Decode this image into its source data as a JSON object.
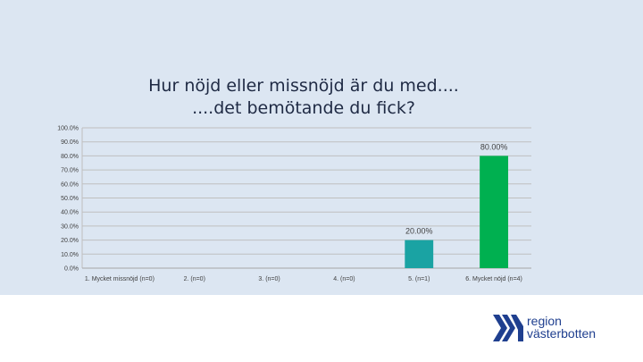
{
  "chart_data": {
    "type": "bar",
    "title": [
      "Hur nöjd eller missnöjd är du med....",
      "....det bemötande du fick?"
    ],
    "categories": [
      "1. Mycket missnöjd (n=0)",
      "2. (n=0)",
      "3. (n=0)",
      "4. (n=0)",
      "5. (n=1)",
      "6. Mycket nöjd (n=4)"
    ],
    "values": [
      0,
      0,
      0,
      0,
      20.0,
      80.0
    ],
    "data_labels": [
      "",
      "",
      "",
      "",
      "20.00%",
      "80.00%"
    ],
    "bar_colors": [
      "#1aa3a3",
      "#1aa3a3",
      "#1aa3a3",
      "#1aa3a3",
      "#1aa3a3",
      "#00b050"
    ],
    "y_ticks": [
      "0.0%",
      "10.0%",
      "20.0%",
      "30.0%",
      "40.0%",
      "50.0%",
      "60.0%",
      "70.0%",
      "80.0%",
      "90.0%",
      "100.0%"
    ],
    "ylim": [
      0,
      100
    ],
    "grid": true,
    "xlabel": "",
    "ylabel": ""
  },
  "logo": {
    "line1": "region",
    "line2": "västerbotten",
    "color": "#1f3f8f"
  }
}
